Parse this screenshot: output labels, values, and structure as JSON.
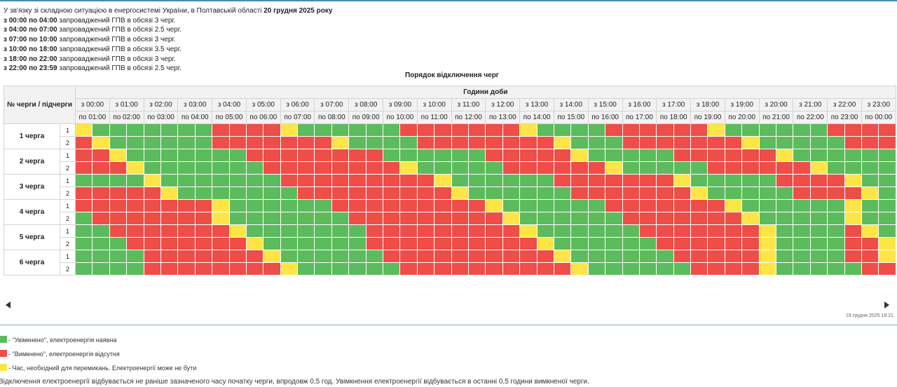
{
  "intro": {
    "lead_text": "У зв'язку зі складною ситуацією в енергосистемі України, в Полтавській області ",
    "date": "20 грудня 2025 року",
    "schedule": [
      {
        "time": "з 00:00 по 04:00",
        "text": " запроваджений ГПВ в обсязі 3 черг."
      },
      {
        "time": "з 04:00 по 07:00",
        "text": " запроваджений ГПВ в обсязі 2.5 черг."
      },
      {
        "time": "з 07:00 по 10:00",
        "text": " запроваджений ГПВ в обсязі 3 черг."
      },
      {
        "time": "з 10:00 по 18:00",
        "text": " запроваджений ГПВ в обсязі 3.5 черг."
      },
      {
        "time": "з 18:00 по 22:00",
        "text": " запроваджений ГПВ в обсязі 3 черг."
      },
      {
        "time": "з 22:00 по 23:59",
        "text": " запроваджений ГПВ в обсязі 2.5 черг."
      }
    ]
  },
  "table": {
    "caption": "Порядок відключення черг",
    "corner_header": "№ черги / підчерги",
    "hours_header": "Години доби",
    "hours_from": [
      "з 00:00",
      "з 01:00",
      "з 02:00",
      "з 03:00",
      "з 04:00",
      "з 05:00",
      "з 06:00",
      "з 07:00",
      "з 08:00",
      "з 09:00",
      "з 10:00",
      "з 11:00",
      "з 12:00",
      "з 13:00",
      "з 14:00",
      "з 15:00",
      "з 16:00",
      "з 17:00",
      "з 18:00",
      "з 19:00",
      "з 20:00",
      "з 21:00",
      "з 22:00",
      "з 23:00"
    ],
    "hours_to": [
      "по 01:00",
      "по 02:00",
      "по 03:00",
      "по 04:00",
      "по 05:00",
      "по 06:00",
      "по 07:00",
      "по 08:00",
      "по 09:00",
      "по 10:00",
      "по 11:00",
      "по 12:00",
      "по 13:00",
      "по 14:00",
      "по 15:00",
      "по 16:00",
      "по 17:00",
      "по 18:00",
      "по 19:00",
      "по 20:00",
      "по 21:00",
      "по 22:00",
      "по 23:00",
      "по 00:00"
    ],
    "queues": [
      {
        "label": "1 черга",
        "subqueues": [
          {
            "label": "1",
            "states": "YGGGGGGGRRRRYGGGGGGRRRRRRRYGGGGRRRRRRYGGGGGGRRRR"
          },
          {
            "label": "2",
            "states": "RYGGGGGGRRRRRRRYGGGGRRRRRRRRYGGGRRRRRRRYGGGGGRRR"
          }
        ]
      },
      {
        "label": "2 черга",
        "subqueues": [
          {
            "label": "1",
            "states": "RRYGGGGGGGRRRRRRRRGGGGGGRRRRRYGGGGGRRRRRRYGGGGGG"
          },
          {
            "label": "2",
            "states": "RRRYGGGGGGGRRRRRRRRYGGGGGRRRRRRYGGGGGRRRRRRYGGGG"
          }
        ]
      },
      {
        "label": "3 черга",
        "subqueues": [
          {
            "label": "1",
            "states": "GGGGYGGGGGGGRRRRRRRRRYGGGGGGRRRRRRRYGGGGGRRRRYGG"
          },
          {
            "label": "2",
            "states": "RRRRRYGGGGGGGRRRRRRRRRYGGGGGGRRRRRRRYGGGGGRRRRYG"
          }
        ]
      },
      {
        "label": "4 черга",
        "subqueues": [
          {
            "label": "1",
            "states": "RRRRRRRRYGGGGGGRRRRRRRRRYGGGGGGRRRRRRRYGGGGGGYGG"
          },
          {
            "label": "2",
            "states": "GRRRRRRRYGGGGGGGRRRRRRRRRYGGGGGGRRRRRRRYGGGGGYGG"
          }
        ]
      },
      {
        "label": "5 черга",
        "subqueues": [
          {
            "label": "1",
            "states": "GGRRRRRRRYGGGGGGGRRRRRRRRRYGGGGGGRRRRRRRYGGGGRYG"
          },
          {
            "label": "2",
            "states": "GGGRRRRRRRYGGGGGGRRRRRRRRRRYGGGGGGRRRRRRYGGGGRRY"
          }
        ]
      },
      {
        "label": "6 черга",
        "subqueues": [
          {
            "label": "1",
            "states": "GGGGRRRRRRRYGGGGGGRRRRRRRRRRYGGGGGGRRRRRYGGGGRRY"
          },
          {
            "label": "2",
            "states": "GGGGRRRRRRRRYGGGGGGRRRRRRRRRRYGGGGGGRRRRYGGGGGRR"
          }
        ]
      }
    ]
  },
  "timestamp": "19 грудня 2025 18:21",
  "legend": [
    {
      "state": "G",
      "text": "- \"Увімкнено\", електроенергія наявна"
    },
    {
      "state": "R",
      "text": "- \"Вимкнено\", електроенергія відсутня"
    },
    {
      "state": "Y",
      "text": "- Час, необхідний для перемикань. Електроенергії може не бути"
    }
  ],
  "footnote": "Відключення електроенергії відбувається не раніше зазначеного часу початку черги, впродовж 0,5 год. Увімкнення електроенергії відбувається в останні 0,5 години вимкненої черги.",
  "colors": {
    "on": "#5cbb5c",
    "off": "#ee4d48",
    "switching": "#fde547",
    "accent": "#4a8ab5"
  },
  "icons": {
    "scroll_left": "triangle-left-icon",
    "scroll_right": "triangle-right-icon"
  }
}
